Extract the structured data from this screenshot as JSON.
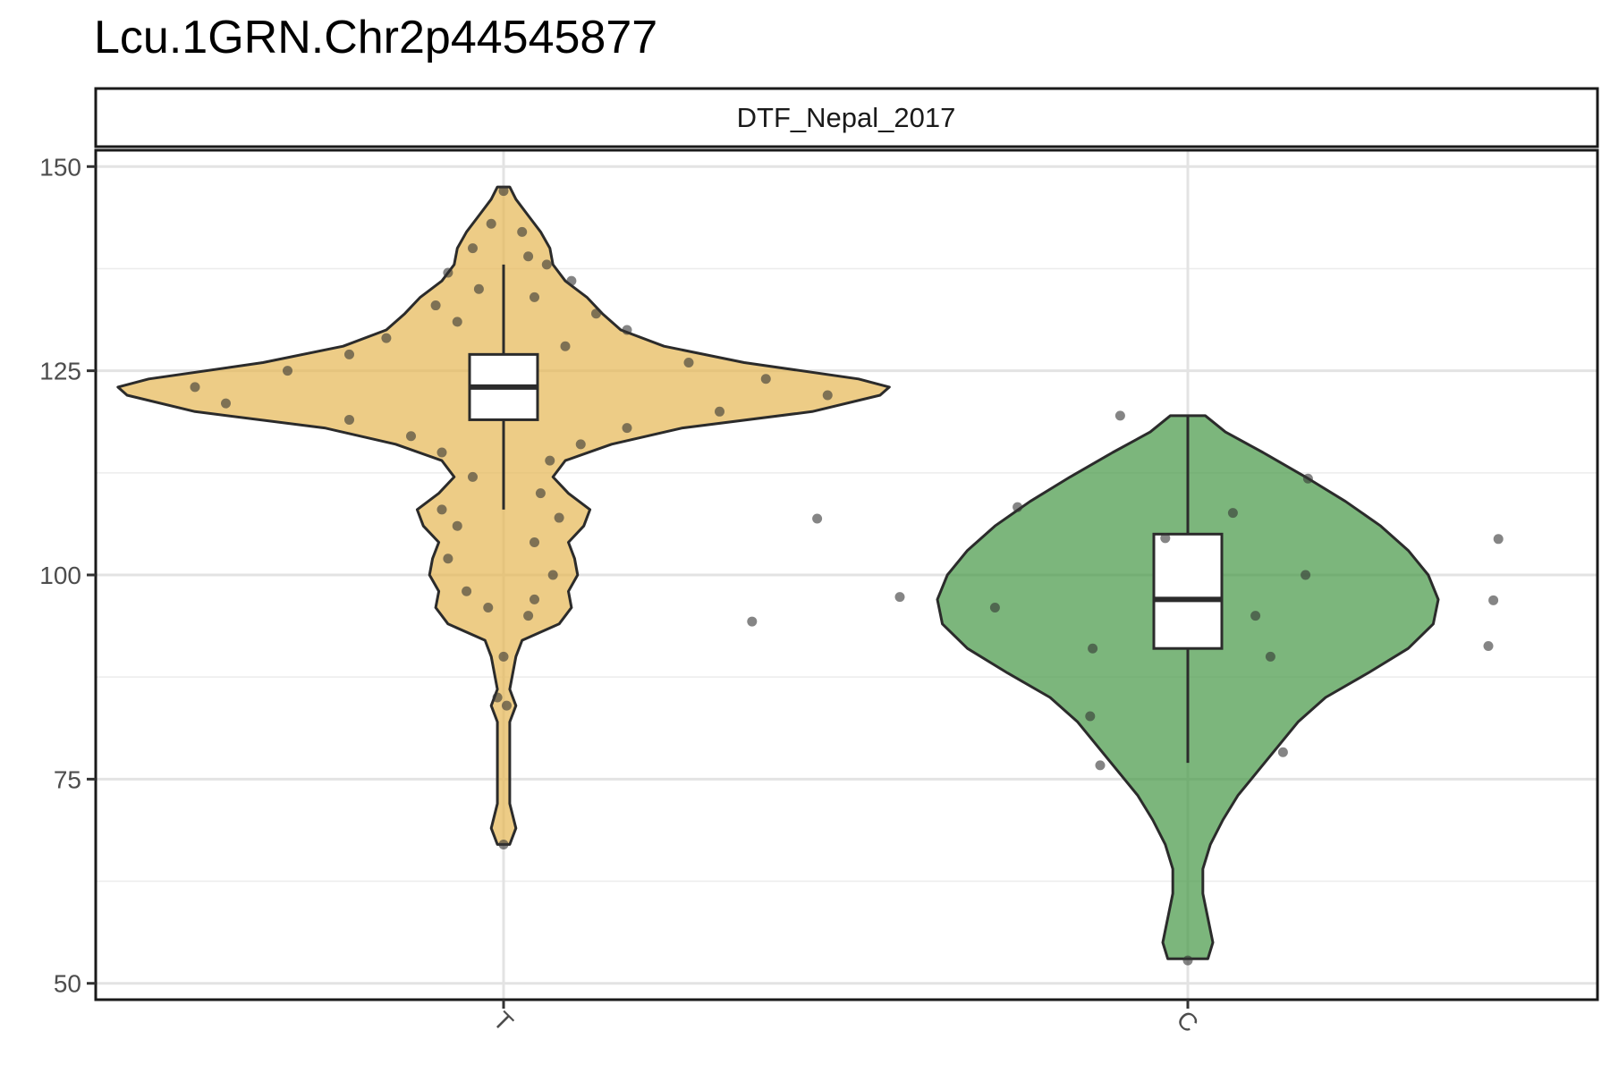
{
  "chart_data": {
    "type": "violin",
    "title": "Lcu.1GRN.Chr2p44545877",
    "facet_label": "DTF_Nepal_2017",
    "xlabel": "",
    "ylabel": "",
    "ylim": [
      48,
      152
    ],
    "y_ticks": [
      50,
      75,
      100,
      125,
      150
    ],
    "grid": true,
    "legend": "none",
    "categories": [
      "T",
      "C"
    ],
    "colors": {
      "T": "#e6b857",
      "C": "#4a9a4a",
      "outline": "#2b2b2b",
      "points": "#333333"
    },
    "groups": [
      {
        "name": "T",
        "box": {
          "min": 108,
          "q1": 119,
          "median": 123,
          "q3": 127,
          "max": 138
        },
        "range": [
          67,
          147.5
        ],
        "density_profile": [
          [
            67,
            0.02
          ],
          [
            69,
            0.04
          ],
          [
            72,
            0.02
          ],
          [
            78,
            0.02
          ],
          [
            82,
            0.02
          ],
          [
            84,
            0.04
          ],
          [
            86,
            0.02
          ],
          [
            90,
            0.04
          ],
          [
            92,
            0.06
          ],
          [
            94,
            0.18
          ],
          [
            96,
            0.22
          ],
          [
            98,
            0.21
          ],
          [
            100,
            0.24
          ],
          [
            102,
            0.23
          ],
          [
            104,
            0.21
          ],
          [
            106,
            0.26
          ],
          [
            108,
            0.28
          ],
          [
            110,
            0.21
          ],
          [
            112,
            0.16
          ],
          [
            114,
            0.2
          ],
          [
            116,
            0.35
          ],
          [
            118,
            0.58
          ],
          [
            120,
            1.0
          ],
          [
            122,
            1.22
          ],
          [
            123,
            1.25
          ],
          [
            124,
            1.15
          ],
          [
            126,
            0.78
          ],
          [
            128,
            0.52
          ],
          [
            130,
            0.38
          ],
          [
            132,
            0.32
          ],
          [
            134,
            0.27
          ],
          [
            136,
            0.2
          ],
          [
            138,
            0.16
          ],
          [
            140,
            0.15
          ],
          [
            142,
            0.12
          ],
          [
            144,
            0.08
          ],
          [
            146,
            0.04
          ],
          [
            147.5,
            0.02
          ]
        ],
        "points": [
          [
            147,
            0
          ],
          [
            143,
            -0.04
          ],
          [
            142,
            0.06
          ],
          [
            140,
            -0.1
          ],
          [
            139,
            0.08
          ],
          [
            138,
            0.14
          ],
          [
            137,
            -0.18
          ],
          [
            136,
            0.22
          ],
          [
            135,
            -0.08
          ],
          [
            134,
            0.1
          ],
          [
            133,
            -0.22
          ],
          [
            132,
            0.3
          ],
          [
            131,
            -0.15
          ],
          [
            130,
            0.4
          ],
          [
            129,
            -0.38
          ],
          [
            128,
            0.2
          ],
          [
            127,
            -0.5
          ],
          [
            126,
            0.6
          ],
          [
            125,
            -0.7
          ],
          [
            124,
            0.85
          ],
          [
            123,
            -1.0
          ],
          [
            122,
            1.05
          ],
          [
            121,
            -0.9
          ],
          [
            120,
            0.7
          ],
          [
            119,
            -0.5
          ],
          [
            118,
            0.4
          ],
          [
            117,
            -0.3
          ],
          [
            116,
            0.25
          ],
          [
            115,
            -0.2
          ],
          [
            114,
            0.15
          ],
          [
            112,
            -0.1
          ],
          [
            110,
            0.12
          ],
          [
            108,
            -0.2
          ],
          [
            107,
            0.18
          ],
          [
            106,
            -0.15
          ],
          [
            104,
            0.1
          ],
          [
            102,
            -0.18
          ],
          [
            100,
            0.16
          ],
          [
            98,
            -0.12
          ],
          [
            97,
            0.1
          ],
          [
            96,
            -0.05
          ],
          [
            95,
            0.08
          ],
          [
            90,
            0
          ],
          [
            85,
            -0.02
          ],
          [
            84,
            0.01
          ],
          [
            67,
            0
          ]
        ]
      },
      {
        "name": "C",
        "box": {
          "min": 77,
          "q1": 91,
          "median": 97,
          "q3": 105,
          "max": 119.5
        },
        "range": [
          53,
          119.5
        ],
        "density_profile": [
          [
            53,
            0.08
          ],
          [
            55,
            0.1
          ],
          [
            58,
            0.08
          ],
          [
            61,
            0.06
          ],
          [
            64,
            0.06
          ],
          [
            67,
            0.09
          ],
          [
            70,
            0.14
          ],
          [
            73,
            0.2
          ],
          [
            76,
            0.28
          ],
          [
            79,
            0.36
          ],
          [
            82,
            0.44
          ],
          [
            85,
            0.55
          ],
          [
            88,
            0.72
          ],
          [
            91,
            0.88
          ],
          [
            94,
            0.98
          ],
          [
            97,
            1.0
          ],
          [
            100,
            0.96
          ],
          [
            103,
            0.88
          ],
          [
            106,
            0.77
          ],
          [
            109,
            0.63
          ],
          [
            112,
            0.47
          ],
          [
            115,
            0.3
          ],
          [
            117.5,
            0.15
          ],
          [
            119.5,
            0.07
          ]
        ],
        "points": [
          [
            119.5,
            -0.27
          ],
          [
            111.8,
            0.48
          ],
          [
            108.3,
            -0.68
          ],
          [
            107.6,
            0.18
          ],
          [
            106.9,
            -1.48
          ],
          [
            104.5,
            -0.09
          ],
          [
            104.4,
            1.24
          ],
          [
            100,
            0.47
          ],
          [
            97.3,
            -1.15
          ],
          [
            96.9,
            1.22
          ],
          [
            96,
            -0.77
          ],
          [
            95,
            0.27
          ],
          [
            94.3,
            -1.74
          ],
          [
            91.3,
            1.2
          ],
          [
            91,
            -0.38
          ],
          [
            90,
            0.33
          ],
          [
            82.7,
            -0.39
          ],
          [
            78.3,
            0.38
          ],
          [
            76.7,
            -0.35
          ],
          [
            52.8,
            0
          ]
        ]
      }
    ]
  }
}
